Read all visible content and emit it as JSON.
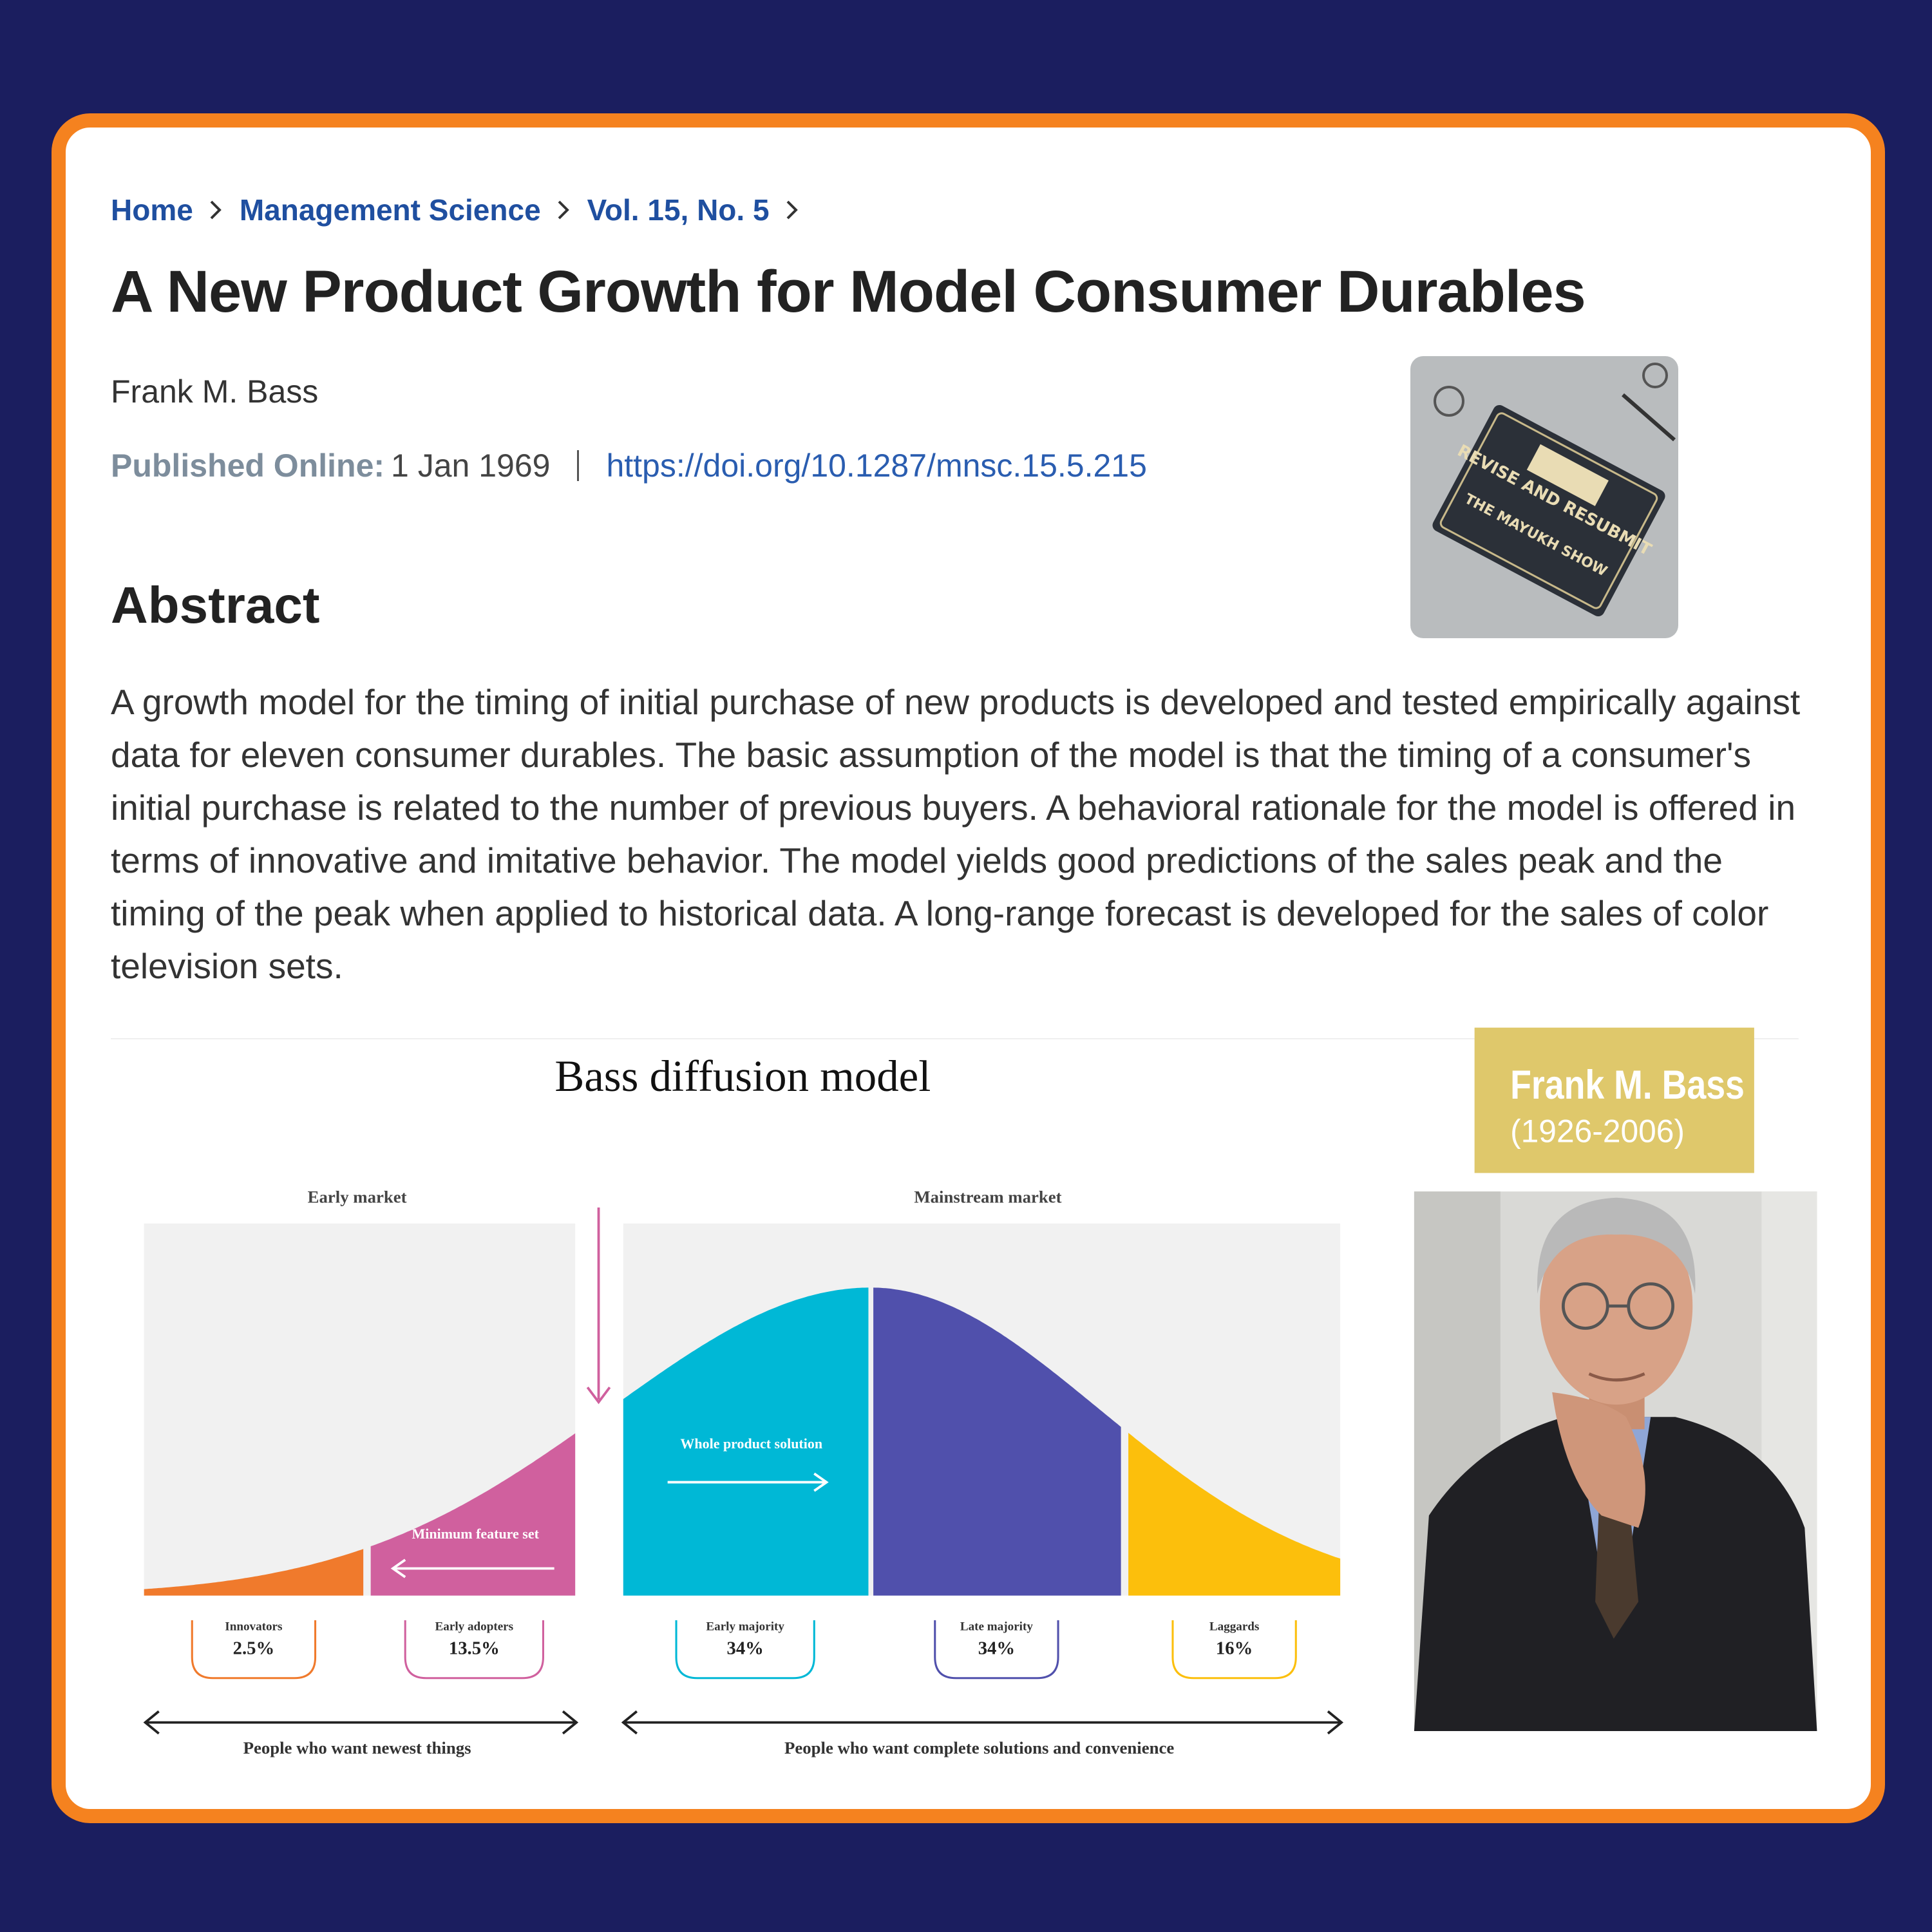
{
  "breadcrumb": [
    "Home",
    "Management Science",
    "Vol. 15, No. 5"
  ],
  "title": "A New Product Growth for Model Consumer Durables",
  "author": "Frank M. Bass",
  "published_label": "Published Online:",
  "published_date": "1 Jan 1969",
  "doi": "https://doi.org/10.1287/mnsc.15.5.215",
  "thumbnail": {
    "title": "REVISE AND RESUBMIT",
    "subtitle": "THE MAYUKH SHOW"
  },
  "abstract_heading": "Abstract",
  "abstract": "A growth model for the timing of initial purchase of new products is developed and tested empirically against data for eleven consumer durables. The basic assumption of the model is that the timing of a consumer's initial purchase is related to the number of previous buyers. A behavioral rationale for the model is offered in terms of innovative and imitative behavior. The model yields good predictions of the sales peak and the timing of the peak when applied to historical data. A long-range forecast is developed for the sales of color television sets.",
  "diagram": {
    "title": "Bass diffusion model",
    "regions": [
      "Early market",
      "Mainstream market"
    ],
    "notes": [
      "Minimum feature set",
      "Whole product solution"
    ],
    "segments": [
      {
        "name": "Innovators",
        "share": "2.5%",
        "color": "#f07a2c"
      },
      {
        "name": "Early adopters",
        "share": "13.5%",
        "color": "#d0609e"
      },
      {
        "name": "Early majority",
        "share": "34%",
        "color": "#00b8d6"
      },
      {
        "name": "Late majority",
        "share": "34%",
        "color": "#5050ac"
      },
      {
        "name": "Laggards",
        "share": "16%",
        "color": "#fcbf0c"
      }
    ],
    "spans": [
      "People who want newest things",
      "People who want complete solutions and convenience"
    ]
  },
  "portrait": {
    "name": "Frank M. Bass",
    "years": "(1926-2006)"
  }
}
